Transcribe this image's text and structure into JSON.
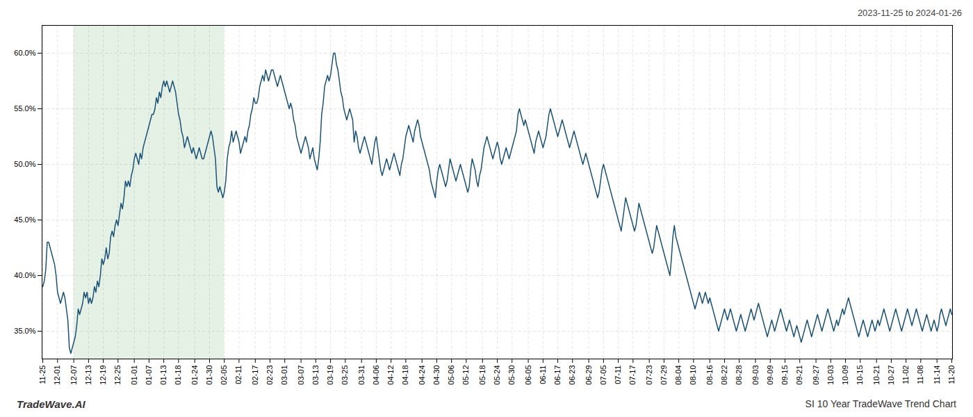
{
  "chart_data": {
    "type": "line",
    "title": "SI 10 Year TradeWave Trend Chart",
    "subtitle": "2023-11-25 to 2024-01-26",
    "annotations": [
      "TradeWave.AI"
    ],
    "color": "#1a5276",
    "grid": true,
    "highlight": {
      "start": "12-07",
      "end": "02-05",
      "color": "#d5e8d4"
    },
    "ylim": [
      32.5,
      62.5
    ],
    "yticks": [
      {
        "value": 35.0,
        "label": "35.0%"
      },
      {
        "value": 40.0,
        "label": "40.0%"
      },
      {
        "value": 45.0,
        "label": "45.0%"
      },
      {
        "value": 50.0,
        "label": "50.0%"
      },
      {
        "value": 55.0,
        "label": "55.0%"
      },
      {
        "value": 60.0,
        "label": "60.0%"
      }
    ],
    "categories": [
      "11-25",
      null,
      null,
      null,
      null,
      null,
      null,
      null,
      null,
      null,
      "12-01",
      null,
      null,
      null,
      null,
      null,
      null,
      null,
      null,
      null,
      null,
      "12-07",
      null,
      null,
      null,
      null,
      null,
      null,
      null,
      null,
      null,
      "12-13",
      null,
      null,
      null,
      null,
      null,
      null,
      null,
      null,
      null,
      "12-19",
      null,
      null,
      null,
      null,
      null,
      null,
      null,
      null,
      null,
      "12-25",
      null,
      null,
      null,
      null,
      null,
      null,
      null,
      null,
      null,
      null,
      "01-01",
      null,
      null,
      null,
      null,
      null,
      null,
      null,
      null,
      null,
      "01-07",
      null,
      null,
      null,
      null,
      null,
      null,
      null,
      null,
      null,
      "01-13",
      null,
      null,
      null,
      null,
      null,
      null,
      null,
      null,
      null,
      "01-18",
      null,
      null,
      null,
      null,
      null,
      null,
      null,
      null,
      null,
      null,
      "01-24",
      null,
      null,
      null,
      null,
      null,
      null,
      null,
      null,
      null,
      "01-30",
      null,
      null,
      null,
      null,
      null,
      null,
      null,
      null,
      null,
      "02-05",
      null,
      null,
      null,
      null,
      null,
      null,
      null,
      null,
      null,
      "02-11",
      null,
      null,
      null,
      null,
      null,
      null,
      null,
      null,
      null,
      null,
      "02-17",
      null,
      null,
      null,
      null,
      null,
      null,
      null,
      null,
      null,
      "02-23",
      null,
      null,
      null,
      null,
      null,
      null,
      null,
      null,
      null,
      "03-01",
      null,
      null,
      null,
      null,
      null,
      null,
      null,
      null,
      null,
      null,
      "03-07",
      null,
      null,
      null,
      null,
      null,
      null,
      null,
      null,
      null,
      "03-13",
      null,
      null,
      null,
      null,
      null,
      null,
      null,
      null,
      null,
      "03-19",
      null,
      null,
      null,
      null,
      null,
      null,
      null,
      null,
      null,
      "03-25",
      null,
      null,
      null,
      null,
      null,
      null,
      null,
      null,
      null,
      null,
      "03-31",
      null,
      null,
      null,
      null,
      null,
      null,
      null,
      null,
      null,
      "04-06",
      null,
      null,
      null,
      null,
      null,
      null,
      null,
      null,
      null,
      "04-12",
      null,
      null,
      null,
      null,
      null,
      null,
      null,
      null,
      null,
      "04-18",
      null,
      null,
      null,
      null,
      null,
      null,
      null,
      null,
      null,
      null,
      "04-24",
      null,
      null,
      null,
      null,
      null,
      null,
      null,
      null,
      null,
      "04-30",
      null,
      null,
      null,
      null,
      null,
      null,
      null,
      null,
      null,
      "05-06",
      null,
      null,
      null,
      null,
      null,
      null,
      null,
      null,
      null,
      "05-12",
      null,
      null,
      null,
      null,
      null,
      null,
      null,
      null,
      null,
      null,
      "05-18",
      null,
      null,
      null,
      null,
      null,
      null,
      null,
      null,
      null,
      "05-24",
      null,
      null,
      null,
      null,
      null,
      null,
      null,
      null,
      null,
      "05-30",
      null,
      null,
      null,
      null,
      null,
      null,
      null,
      null,
      null,
      null,
      "06-05",
      null,
      null,
      null,
      null,
      null,
      null,
      null,
      null,
      null,
      "06-11",
      null,
      null,
      null,
      null,
      null,
      null,
      null,
      null,
      null,
      "06-17",
      null,
      null,
      null,
      null,
      null,
      null,
      null,
      null,
      null,
      "06-23",
      null,
      null,
      null,
      null,
      null,
      null,
      null,
      null,
      null,
      null,
      "06-29",
      null,
      null,
      null,
      null,
      null,
      null,
      null,
      null,
      null,
      "07-05",
      null,
      null,
      null,
      null,
      null,
      null,
      null,
      null,
      null,
      "07-11",
      null,
      null,
      null,
      null,
      null,
      null,
      null,
      null,
      null,
      "07-17",
      null,
      null,
      null,
      null,
      null,
      null,
      null,
      null,
      null,
      null,
      "07-23",
      null,
      null,
      null,
      null,
      null,
      null,
      null,
      null,
      null,
      "07-29",
      null,
      null,
      null,
      null,
      null,
      null,
      null,
      null,
      null,
      "08-04",
      null,
      null,
      null,
      null,
      null,
      null,
      null,
      null,
      null,
      "08-10",
      null,
      null,
      null,
      null,
      null,
      null,
      null,
      null,
      null,
      null,
      "08-16",
      null,
      null,
      null,
      null,
      null,
      null,
      null,
      null,
      null,
      "08-22",
      null,
      null,
      null,
      null,
      null,
      null,
      null,
      null,
      null,
      "08-28",
      null,
      null,
      null,
      null,
      null,
      null,
      null,
      null,
      null,
      null,
      "09-03",
      null,
      null,
      null,
      null,
      null,
      null,
      null,
      null,
      null,
      "09-09",
      null,
      null,
      null,
      null,
      null,
      null,
      null,
      null,
      null,
      "09-15",
      null,
      null,
      null,
      null,
      null,
      null,
      null,
      null,
      null,
      "09-21",
      null,
      null,
      null,
      null,
      null,
      null,
      null,
      null,
      null,
      null,
      "09-27",
      null,
      null,
      null,
      null,
      null,
      null,
      null,
      null,
      null,
      "10-03",
      null,
      null,
      null,
      null,
      null,
      null,
      null,
      null,
      null,
      "10-09",
      null,
      null,
      null,
      null,
      null,
      null,
      null,
      null,
      null,
      "10-15",
      null,
      null,
      null,
      null,
      null,
      null,
      null,
      null,
      null,
      null,
      "10-21",
      null,
      null,
      null,
      null,
      null,
      null,
      null,
      null,
      null,
      "10-27",
      null,
      null,
      null,
      null,
      null,
      null,
      null,
      null,
      null,
      "11-02",
      null,
      null,
      null,
      null,
      null,
      null,
      null,
      null,
      null,
      "11-08",
      null,
      null,
      null,
      null,
      null,
      null,
      null,
      null,
      null,
      null,
      "11-14",
      null,
      null,
      null,
      null,
      null,
      null,
      null,
      null,
      null,
      "11-20"
    ],
    "values": [
      39.0,
      39.5,
      40.5,
      43.0,
      43.0,
      42.5,
      42.0,
      41.5,
      41.0,
      40.0,
      38.5,
      38.0,
      37.5,
      38.0,
      38.5,
      38.0,
      37.0,
      36.0,
      33.5,
      33.0,
      33.5,
      34.0,
      34.5,
      35.5,
      37.0,
      36.5,
      37.0,
      37.5,
      38.5,
      38.0,
      38.5,
      37.5,
      38.0,
      37.5,
      38.0,
      39.0,
      38.5,
      39.5,
      39.0,
      40.0,
      41.5,
      41.0,
      41.5,
      42.5,
      41.5,
      42.0,
      43.5,
      44.0,
      43.5,
      44.5,
      45.0,
      44.5,
      45.5,
      46.5,
      46.0,
      47.0,
      48.5,
      48.0,
      48.5,
      48.0,
      49.0,
      49.5,
      50.5,
      51.0,
      50.5,
      50.0,
      51.0,
      50.5,
      51.5,
      52.0,
      52.5,
      53.0,
      53.5,
      54.0,
      54.5,
      54.5,
      55.0,
      56.0,
      55.5,
      56.5,
      56.0,
      57.0,
      57.5,
      57.0,
      57.5,
      57.0,
      56.5,
      57.0,
      57.5,
      57.0,
      56.5,
      55.5,
      54.5,
      54.0,
      53.0,
      52.5,
      51.5,
      52.0,
      52.5,
      52.0,
      51.5,
      51.0,
      51.5,
      51.0,
      50.5,
      51.0,
      51.5,
      51.0,
      50.5,
      50.5,
      51.0,
      51.5,
      52.0,
      52.5,
      53.0,
      52.5,
      51.5,
      50.5,
      48.0,
      47.5,
      48.0,
      47.5,
      47.0,
      47.5,
      48.5,
      50.5,
      51.5,
      52.0,
      53.0,
      52.0,
      52.5,
      53.0,
      52.5,
      52.0,
      51.0,
      51.5,
      52.0,
      52.5,
      52.0,
      53.0,
      53.5,
      54.5,
      55.0,
      56.0,
      55.5,
      55.5,
      56.0,
      57.0,
      57.5,
      58.0,
      57.5,
      58.5,
      58.0,
      57.5,
      58.0,
      58.5,
      58.5,
      58.0,
      57.5,
      57.0,
      57.5,
      58.0,
      57.5,
      57.0,
      56.5,
      56.0,
      55.5,
      55.0,
      55.5,
      55.0,
      54.0,
      53.5,
      52.5,
      52.0,
      51.5,
      51.0,
      51.5,
      52.0,
      52.5,
      52.0,
      51.5,
      50.5,
      51.0,
      51.5,
      50.5,
      50.0,
      49.5,
      50.5,
      52.0,
      54.5,
      55.5,
      57.0,
      57.5,
      58.0,
      57.5,
      58.0,
      59.0,
      60.0,
      60.0,
      59.0,
      58.5,
      57.5,
      56.5,
      56.0,
      55.0,
      54.5,
      54.0,
      54.5,
      55.0,
      54.5,
      54.0,
      52.0,
      53.0,
      52.5,
      51.5,
      51.0,
      51.5,
      52.0,
      52.5,
      52.0,
      51.5,
      51.0,
      50.5,
      50.0,
      51.0,
      52.0,
      52.5,
      51.5,
      50.5,
      49.5,
      49.0,
      49.5,
      50.0,
      50.5,
      50.0,
      49.5,
      50.0,
      50.5,
      51.0,
      50.5,
      50.0,
      49.5,
      49.0,
      50.0,
      50.5,
      51.5,
      52.5,
      53.0,
      53.5,
      53.0,
      52.5,
      52.0,
      53.0,
      53.5,
      54.0,
      53.5,
      52.5,
      52.0,
      51.5,
      51.0,
      50.5,
      50.0,
      49.5,
      48.5,
      48.0,
      47.5,
      47.0,
      48.5,
      49.5,
      50.0,
      49.5,
      49.0,
      48.5,
      48.0,
      48.5,
      49.5,
      50.5,
      50.0,
      49.5,
      49.0,
      48.5,
      49.0,
      49.5,
      50.0,
      49.5,
      49.0,
      48.5,
      48.0,
      47.5,
      48.0,
      49.5,
      50.5,
      50.0,
      49.5,
      48.5,
      48.0,
      49.0,
      49.5,
      50.5,
      51.5,
      52.0,
      52.5,
      52.0,
      51.5,
      51.0,
      50.5,
      51.0,
      51.5,
      52.0,
      51.5,
      50.5,
      50.0,
      50.5,
      51.0,
      51.5,
      51.0,
      50.5,
      51.0,
      51.5,
      52.0,
      52.5,
      53.0,
      54.5,
      55.0,
      54.5,
      54.0,
      53.5,
      54.0,
      53.5,
      53.0,
      52.5,
      52.0,
      51.5,
      51.0,
      52.0,
      52.5,
      53.0,
      52.5,
      52.0,
      51.5,
      52.0,
      52.5,
      53.5,
      54.5,
      55.0,
      54.5,
      54.0,
      53.5,
      53.0,
      52.5,
      53.0,
      53.5,
      54.0,
      53.5,
      53.0,
      52.5,
      52.0,
      51.5,
      52.0,
      52.5,
      53.0,
      52.5,
      52.0,
      51.5,
      51.0,
      50.5,
      50.0,
      50.5,
      51.0,
      50.5,
      50.0,
      49.5,
      49.0,
      48.5,
      48.0,
      47.5,
      47.0,
      47.5,
      48.5,
      49.5,
      50.0,
      49.5,
      49.0,
      48.5,
      48.0,
      47.5,
      47.0,
      46.5,
      46.0,
      45.5,
      45.0,
      44.5,
      44.0,
      45.0,
      46.0,
      47.0,
      46.5,
      46.0,
      45.5,
      45.0,
      44.5,
      44.0,
      44.5,
      45.5,
      46.5,
      46.0,
      45.5,
      45.0,
      44.5,
      44.0,
      43.5,
      43.0,
      42.5,
      42.0,
      42.5,
      43.5,
      44.5,
      44.0,
      43.5,
      43.0,
      42.5,
      42.0,
      41.5,
      41.0,
      40.5,
      40.0,
      41.5,
      43.5,
      44.5,
      43.5,
      43.0,
      42.5,
      42.0,
      41.5,
      41.0,
      40.5,
      40.0,
      39.5,
      39.0,
      38.5,
      38.0,
      37.5,
      37.0,
      37.5,
      38.0,
      38.5,
      38.0,
      37.5,
      38.0,
      38.5,
      38.0,
      37.5,
      38.0,
      37.5,
      37.0,
      36.5,
      36.0,
      35.5,
      35.0,
      35.5,
      36.0,
      36.5,
      37.0,
      36.5,
      36.0,
      36.5,
      37.0,
      36.5,
      36.0,
      35.5,
      35.0,
      35.5,
      36.0,
      36.5,
      36.0,
      35.5,
      35.0,
      35.5,
      36.0,
      36.5,
      37.0,
      36.5,
      36.0,
      36.5,
      37.0,
      37.5,
      37.0,
      36.5,
      36.0,
      35.5,
      35.0,
      34.5,
      35.0,
      35.5,
      36.0,
      35.5,
      35.0,
      35.5,
      36.0,
      36.5,
      37.0,
      36.5,
      36.0,
      35.5,
      35.0,
      35.5,
      36.0,
      35.5,
      35.0,
      34.5,
      35.0,
      35.5,
      35.0,
      34.5,
      34.0,
      34.5,
      35.0,
      35.5,
      36.0,
      35.5,
      35.0,
      34.5,
      35.0,
      35.5,
      36.0,
      36.5,
      36.0,
      35.5,
      35.0,
      35.5,
      36.0,
      36.5,
      37.0,
      36.5,
      36.0,
      35.5,
      35.0,
      35.5,
      36.0,
      35.5,
      36.0,
      36.5,
      37.0,
      36.5,
      37.0,
      37.5,
      38.0,
      37.5,
      37.0,
      36.5,
      36.0,
      35.5,
      35.0,
      34.5,
      35.0,
      35.5,
      36.0,
      35.5,
      35.0,
      34.5,
      35.0,
      35.5,
      36.0,
      35.5,
      35.0,
      35.5,
      36.0,
      35.5,
      36.0,
      36.5,
      37.0,
      36.5,
      36.0,
      35.5,
      35.0,
      35.5,
      36.0,
      36.5,
      37.0,
      36.5,
      36.0,
      35.5,
      35.0,
      35.5,
      36.0,
      36.5,
      37.0,
      36.5,
      36.0,
      35.5,
      36.0,
      36.5,
      37.0,
      36.5,
      36.0,
      35.5,
      35.0,
      35.5,
      36.0,
      36.5,
      36.0,
      35.5,
      35.0,
      35.5,
      36.0,
      35.5,
      35.0,
      35.5,
      36.5,
      37.0,
      36.5,
      36.0,
      35.5,
      36.0,
      36.5,
      37.0,
      36.5
    ]
  }
}
